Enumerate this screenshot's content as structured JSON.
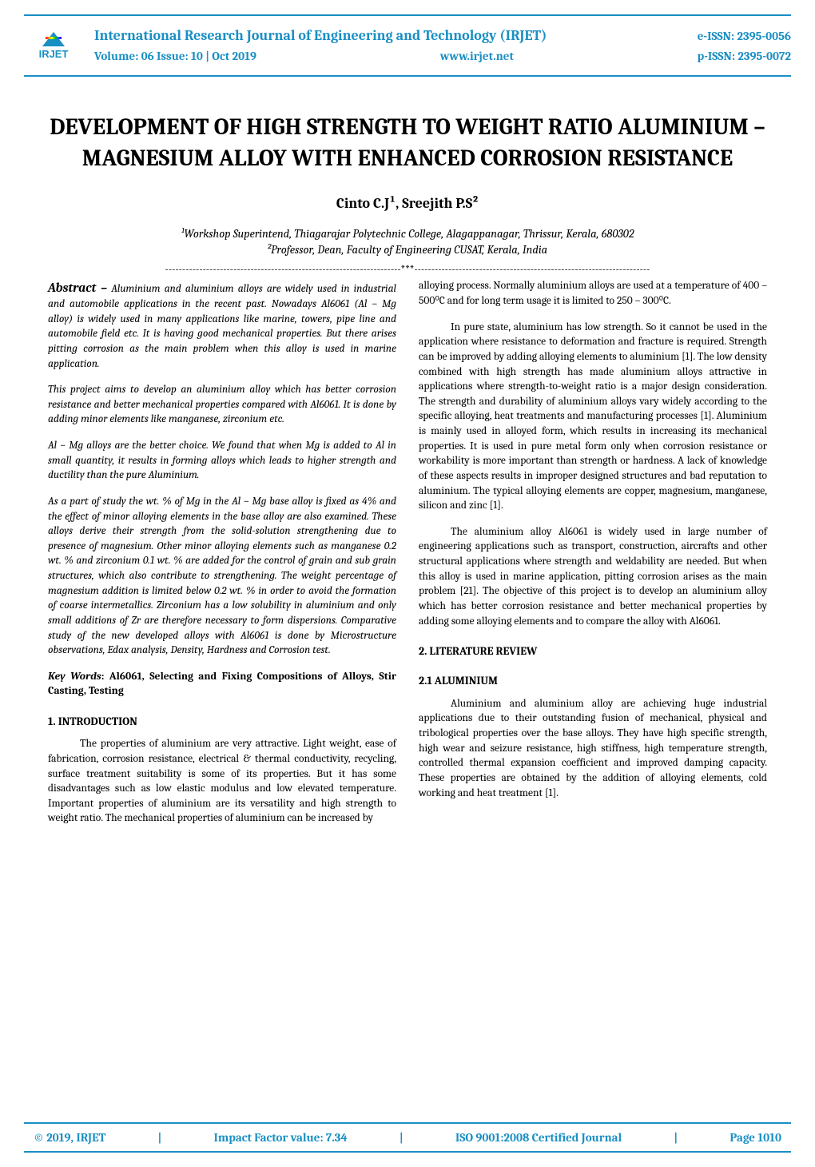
{
  "colors": {
    "accent": "#1a8fc4",
    "text": "#000000",
    "background": "#ffffff"
  },
  "typography": {
    "body_font": "Cambria, Georgia, serif",
    "body_size_pt": 10,
    "title_size_pt": 22,
    "authors_size_pt": 13,
    "section_size_pt": 11
  },
  "logo": {
    "top_text": "",
    "bottom_text": "IRJET"
  },
  "header": {
    "journal_title": "International Research Journal of Engineering and Technology (IRJET)",
    "volume": "Volume: 06 Issue: 10 | Oct 2019",
    "website": "www.irjet.net",
    "e_issn": "e-ISSN: 2395-0056",
    "p_issn": "p-ISSN: 2395-0072"
  },
  "title": "DEVELOPMENT OF HIGH STRENGTH TO WEIGHT RATIO ALUMINIUM – MAGNESIUM ALLOY WITH ENHANCED CORROSION RESISTANCE",
  "authors": "Cinto C.J¹, Sreejith P.S²",
  "affil1": "¹Workshop Superintend, Thiagarajar Polytechnic College, Alagappanagar, Thrissur, Kerala, 680302",
  "affil2": "²Professor, Dean, Faculty of Engineering CUSAT, Kerala, India",
  "separator": "---------------------------------------------------------------------***---------------------------------------------------------------------",
  "abstract_label": "Abstract –",
  "abstract": {
    "p1_lead": " Aluminium and aluminium alloys are widely used in industrial and automobile applications in the recent past. Nowadays Al6061 (Al – Mg alloy) is widely used in many applications like marine, towers, pipe line and automobile field etc. It is having good mechanical properties. But there arises pitting corrosion as the main problem when this alloy is used in marine application.",
    "p2": "This project aims to develop an aluminium alloy which has better corrosion resistance and better mechanical properties compared with Al6061. It is done by adding minor elements like manganese, zirconium etc.",
    "p3": "Al – Mg alloys are the better choice. We found that when Mg is added to Al in small quantity, it results in forming alloys which leads to higher strength and ductility than the pure Aluminium.",
    "p4": "As a part of study the wt. % of Mg in the Al – Mg base alloy is fixed as 4% and the effect of minor alloying elements in the base alloy are also examined. These alloys derive their strength from the solid-solution strengthening due to presence of magnesium. Other minor alloying elements such as manganese 0.2 wt. % and zirconium 0.1 wt. % are added for the control of grain and sub grain structures, which also contribute to strengthening. The weight percentage of magnesium addition is limited below 0.2 wt. % in order to avoid the formation of coarse intermetallics. Zirconium has a low solubility in aluminium and only small additions of Zr are therefore necessary to form dispersions. Comparative study of the new developed alloys with Al6061 is done by Microstructure observations, Edax analysis, Density, Hardness and Corrosion test."
  },
  "keywords_label": "Key Words",
  "keywords_text": ":  Al6061, Selecting and Fixing Compositions of Alloys, Stir Casting, Testing",
  "sections": {
    "intro_h": "1. INTRODUCTION",
    "intro_p1": "The properties of aluminium are very attractive. Light weight, ease of fabrication, corrosion resistance, electrical & thermal conductivity, recycling, surface treatment suitability is some of its properties. But it has some disadvantages such as low elastic modulus and low elevated temperature. Important properties of aluminium are its versatility and high strength to weight ratio. The mechanical properties of aluminium can be increased by",
    "right_p1": "alloying process. Normally aluminium alloys are used at a temperature of 400 – 500⁰C and for long term usage it is limited to 250 – 300⁰C.",
    "right_p2": "In pure state, aluminium has low strength. So it cannot be used in the application where resistance to deformation and fracture is required. Strength can be improved by adding alloying elements to aluminium [1]. The low density combined with high strength has made aluminium alloys attractive in applications where strength-to-weight ratio is a major design consideration. The strength and durability of aluminium alloys vary widely according to the  specific alloying, heat treatments and manufacturing processes [1]. Aluminium is mainly used in alloyed form, which results in increasing its mechanical properties. It is used in pure metal form only when corrosion resistance or workability is more important than strength or hardness.  A lack of knowledge of these aspects results in improper designed structures and bad reputation to aluminium. The typical    alloying elements are copper, magnesium, manganese, silicon and zinc [1].",
    "right_p3": "The aluminium alloy Al6061 is widely used in large number of engineering applications such as transport, construction, aircrafts and other structural applications where strength and weldability are needed. But when this alloy is used in marine application, pitting corrosion arises as the main problem [21]. The objective of this project is to develop an aluminium alloy which has better corrosion resistance and better mechanical properties by adding some alloying elements and to compare the alloy with Al6061.",
    "lit_h": "2. LITERATURE REVIEW",
    "alum_h": "2.1 ALUMINIUM",
    "alum_p1": "Aluminium and aluminium alloy are achieving huge industrial applications due to their outstanding fusion of mechanical, physical and tribological properties over the base alloys. They have high specific strength, high wear and seizure resistance, high stiffness, high temperature strength, controlled thermal expansion coefficient and improved damping capacity. These properties are obtained by the addition of alloying elements, cold working and heat treatment [1]."
  },
  "footer": {
    "copyright": "© 2019, IRJET",
    "impact": "Impact Factor value: 7.34",
    "iso": "ISO 9001:2008 Certified Journal",
    "page": "Page 1010",
    "sep": "|"
  }
}
